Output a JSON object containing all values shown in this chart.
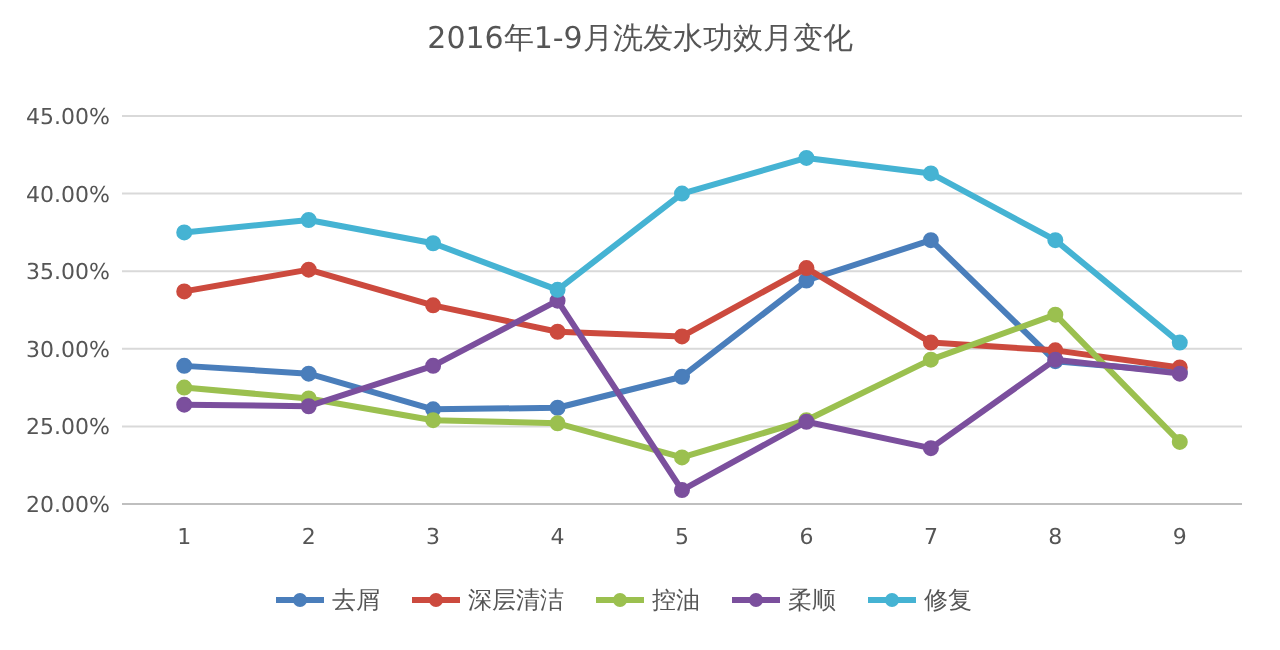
{
  "chart_data": {
    "type": "line",
    "title": "2016年1-9月洗发水功效月变化",
    "categories": [
      "1",
      "2",
      "3",
      "4",
      "5",
      "6",
      "7",
      "8",
      "9"
    ],
    "series": [
      {
        "name": "去屑",
        "color": "#4a7ebb",
        "values": [
          28.9,
          28.4,
          26.1,
          26.2,
          28.2,
          34.4,
          37.0,
          29.2,
          28.5
        ]
      },
      {
        "name": "深层清洁",
        "color": "#cc4a3e",
        "values": [
          33.7,
          35.1,
          32.8,
          31.1,
          30.8,
          35.2,
          30.4,
          29.9,
          28.8
        ]
      },
      {
        "name": "控油",
        "color": "#9bc04f",
        "values": [
          27.5,
          26.8,
          25.4,
          25.2,
          23.0,
          25.4,
          29.3,
          32.2,
          24.0
        ]
      },
      {
        "name": "柔顺",
        "color": "#7b4f9d",
        "values": [
          26.4,
          26.3,
          28.9,
          33.1,
          20.9,
          25.3,
          23.6,
          29.3,
          28.4
        ]
      },
      {
        "name": "修复",
        "color": "#45b3d3",
        "values": [
          37.5,
          38.3,
          36.8,
          33.8,
          40.0,
          42.3,
          41.3,
          37.0,
          30.4
        ]
      }
    ],
    "ylim": [
      20,
      45
    ],
    "yticks": [
      {
        "value": 20,
        "label": "20.00%"
      },
      {
        "value": 25,
        "label": "25.00%"
      },
      {
        "value": 30,
        "label": "30.00%"
      },
      {
        "value": 35,
        "label": "35.00%"
      },
      {
        "value": 40,
        "label": "40.00%"
      },
      {
        "value": 45,
        "label": "45.00%"
      }
    ],
    "grid": "y",
    "legend": "bottom",
    "marker": "circle"
  }
}
